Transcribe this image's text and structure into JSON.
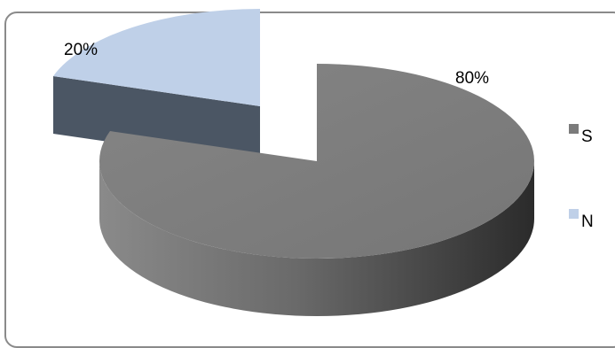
{
  "chart_data": {
    "type": "pie",
    "style": "3d-exploded",
    "categories": [
      "S",
      "N"
    ],
    "values": [
      80,
      20
    ],
    "data_labels": [
      "80%",
      "20%"
    ],
    "legend": [
      {
        "name": "S",
        "color": "#7b7b7b"
      },
      {
        "name": "N",
        "color": "#bfd0e8"
      }
    ],
    "legend_position": "right",
    "colors": {
      "S_top": "#7b7b7b",
      "S_side_light": "#6f6f6f",
      "S_side_dark": "#2f2f2f",
      "N_top": "#bfd0e8",
      "N_side": "#4b5664"
    }
  }
}
